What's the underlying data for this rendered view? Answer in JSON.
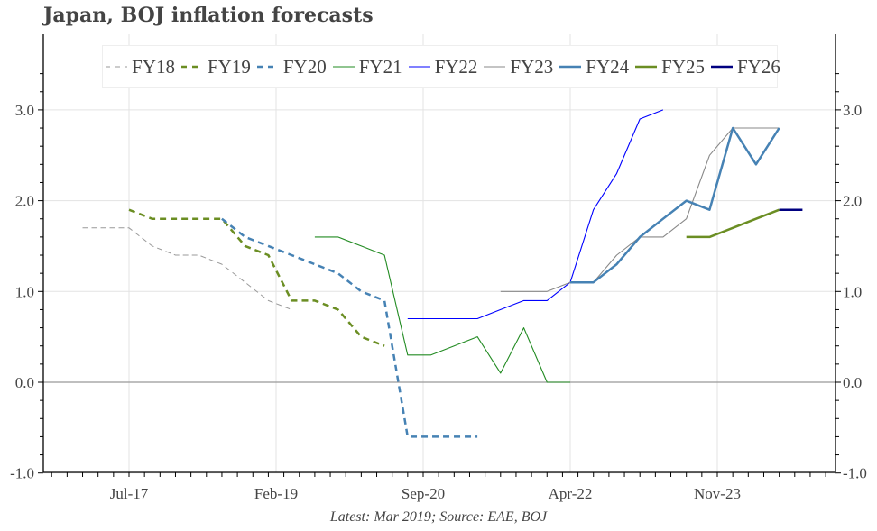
{
  "chart_data": {
    "type": "line",
    "title": "Japan, BOJ inflation forecasts",
    "footnote": "Latest: Mar 2019; Source: EAE, BOJ",
    "x_tick_labels": [
      "Jul-17",
      "Feb-19",
      "Sep-20",
      "Apr-22",
      "Nov-23"
    ],
    "y_tick_labels": [
      "-1.0",
      "0.0",
      "1.0",
      "2.0",
      "3.0"
    ],
    "ylim": [
      -1.0,
      3.4
    ],
    "xlim": [
      "Nov-16",
      "Apr-25"
    ],
    "grid": true,
    "legend_position": "top",
    "secondary_y_axis_mirrors_primary": true,
    "series": [
      {
        "name": "FY18",
        "color": "#999999",
        "style": "dashed-thin",
        "start": "Jan-17",
        "values": [
          1.7,
          1.7,
          1.7,
          1.5,
          1.4,
          1.4,
          1.3,
          1.1,
          0.9,
          0.8
        ]
      },
      {
        "name": "FY19",
        "color": "#6b8e23",
        "style": "dashed",
        "start": "Jul-17",
        "values": [
          1.9,
          1.8,
          1.8,
          1.8,
          1.8,
          1.5,
          1.4,
          0.9,
          0.9,
          0.8,
          0.5,
          0.4
        ]
      },
      {
        "name": "FY20",
        "color": "#4682b4",
        "style": "dashed",
        "start": "Jul-18",
        "values": [
          1.8,
          1.6,
          1.5,
          1.4,
          1.3,
          1.2,
          1.0,
          0.9,
          -0.6,
          -0.6,
          -0.6,
          -0.6
        ]
      },
      {
        "name": "FY21",
        "color": "#228b22",
        "style": "solid-thin",
        "start": "Jul-19",
        "values": [
          1.6,
          1.6,
          1.5,
          1.4,
          0.3,
          0.3,
          0.4,
          0.5,
          0.1,
          0.6,
          0.0,
          0.0
        ]
      },
      {
        "name": "FY22",
        "color": "#0000ff",
        "style": "solid-thin",
        "start": "Jul-20",
        "values": [
          0.7,
          0.7,
          0.7,
          0.7,
          0.8,
          0.9,
          0.9,
          1.1,
          1.9,
          2.3,
          2.9,
          3.0
        ]
      },
      {
        "name": "FY23",
        "color": "#888888",
        "style": "solid-thin",
        "start": "Jul-21",
        "values": [
          1.0,
          1.0,
          1.0,
          1.1,
          1.1,
          1.4,
          1.6,
          1.6,
          1.8,
          2.5,
          2.8,
          2.8,
          2.8
        ]
      },
      {
        "name": "FY24",
        "color": "#4682b4",
        "style": "solid",
        "start": "Apr-22",
        "values": [
          1.1,
          1.1,
          1.3,
          1.6,
          1.8,
          2.0,
          1.9,
          2.8,
          2.4,
          2.8
        ]
      },
      {
        "name": "FY25",
        "color": "#6b8e23",
        "style": "solid",
        "start": "Jul-23",
        "values": [
          1.6,
          1.6,
          1.7,
          1.8,
          1.9
        ]
      },
      {
        "name": "FY26",
        "color": "#000080",
        "style": "solid",
        "start": "Jul-24",
        "values": [
          1.9,
          1.9
        ]
      }
    ]
  }
}
